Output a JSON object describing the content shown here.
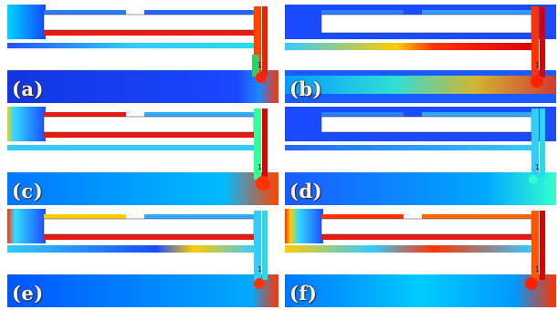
{
  "figure": {
    "panels": [
      {
        "label": "(a)",
        "port": "1"
      },
      {
        "label": "(b)",
        "port": "1"
      },
      {
        "label": "(c)",
        "port": "1"
      },
      {
        "label": "(d)",
        "port": "1"
      },
      {
        "label": "(e)",
        "port": "1"
      },
      {
        "label": "(f)",
        "port": "1"
      }
    ],
    "colormap": [
      "#0000c8",
      "#0066ff",
      "#00ccff",
      "#33ff99",
      "#ccff33",
      "#ffcc00",
      "#ff5500",
      "#e00000"
    ]
  }
}
